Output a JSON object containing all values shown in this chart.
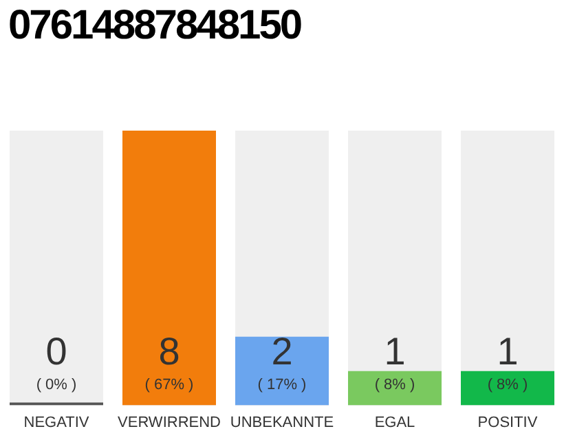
{
  "chart_data": {
    "type": "bar",
    "title": "07614887848150",
    "categories": [
      "NEGATIV",
      "VERWIRREND",
      "UNBEKANNTE",
      "EGAL",
      "POSITIV"
    ],
    "values": [
      0,
      8,
      2,
      1,
      1
    ],
    "colors": [
      "#555555",
      "#f27d0c",
      "#6aa5ee",
      "#7ac95f",
      "#12b84a"
    ],
    "ylim": [
      0,
      8
    ],
    "tick_labels": "x",
    "data_labels": true,
    "grid": false,
    "legend": false,
    "annotations": [
      "( 0% )",
      "( 67% )",
      "( 17% )",
      "( 8% )",
      "( 8% )"
    ]
  }
}
